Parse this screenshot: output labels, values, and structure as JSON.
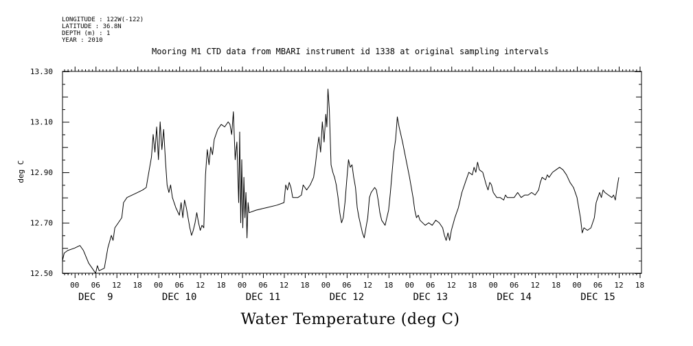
{
  "header": {
    "longitude": "LONGITUDE : 122W(-122)",
    "latitude": "LATITUDE : 36.8N",
    "depth": "DEPTH (m) : 1",
    "year": "YEAR : 2010"
  },
  "chart_data": {
    "type": "line",
    "title": "Mooring M1 CTD data from MBARI instrument id 1338 at original sampling intervals",
    "xlabel": "Water Temperature (deg C)",
    "ylabel": "deg C",
    "ylim": [
      12.5,
      13.3
    ],
    "y_ticks": [
      "12.50",
      "12.70",
      "12.90",
      "13.10",
      "13.30"
    ],
    "x_unit": "hours since DEC 9 00:00",
    "xlim": [
      -3.5,
      162.5
    ],
    "x_hour_ticks": [
      {
        "hour": 0,
        "label": "00"
      },
      {
        "hour": 6,
        "label": "06"
      },
      {
        "hour": 12,
        "label": "12"
      },
      {
        "hour": 18,
        "label": "18"
      },
      {
        "hour": 24,
        "label": "00"
      },
      {
        "hour": 30,
        "label": "06"
      },
      {
        "hour": 36,
        "label": "12"
      },
      {
        "hour": 42,
        "label": "18"
      },
      {
        "hour": 48,
        "label": "00"
      },
      {
        "hour": 54,
        "label": "06"
      },
      {
        "hour": 60,
        "label": "12"
      },
      {
        "hour": 66,
        "label": "18"
      },
      {
        "hour": 72,
        "label": "00"
      },
      {
        "hour": 78,
        "label": "06"
      },
      {
        "hour": 84,
        "label": "12"
      },
      {
        "hour": 90,
        "label": "18"
      },
      {
        "hour": 96,
        "label": "00"
      },
      {
        "hour": 102,
        "label": "06"
      },
      {
        "hour": 108,
        "label": "12"
      },
      {
        "hour": 114,
        "label": "18"
      },
      {
        "hour": 120,
        "label": "00"
      },
      {
        "hour": 126,
        "label": "06"
      },
      {
        "hour": 132,
        "label": "12"
      },
      {
        "hour": 138,
        "label": "18"
      },
      {
        "hour": 144,
        "label": "00"
      },
      {
        "hour": 150,
        "label": "06"
      },
      {
        "hour": 156,
        "label": "12"
      },
      {
        "hour": 162,
        "label": "18"
      }
    ],
    "day_labels": [
      {
        "hour": 6,
        "label": "DEC  9"
      },
      {
        "hour": 30,
        "label": "DEC 10"
      },
      {
        "hour": 54,
        "label": "DEC 11"
      },
      {
        "hour": 78,
        "label": "DEC 12"
      },
      {
        "hour": 102,
        "label": "DEC 13"
      },
      {
        "hour": 126,
        "label": "DEC 14"
      },
      {
        "hour": 150,
        "label": "DEC 15"
      }
    ],
    "grid": false,
    "series": [
      {
        "color": "#000000",
        "points": [
          [
            -3.5,
            12.55
          ],
          [
            -3.0,
            12.58
          ],
          [
            -2.0,
            12.59
          ],
          [
            0.0,
            12.6
          ],
          [
            1.5,
            12.61
          ],
          [
            2.5,
            12.59
          ],
          [
            4.0,
            12.54
          ],
          [
            5.5,
            12.51
          ],
          [
            6.0,
            12.5
          ],
          [
            6.5,
            12.53
          ],
          [
            7.0,
            12.51
          ],
          [
            8.5,
            12.52
          ],
          [
            9.5,
            12.6
          ],
          [
            10.5,
            12.65
          ],
          [
            11.0,
            12.63
          ],
          [
            11.5,
            12.68
          ],
          [
            12.5,
            12.7
          ],
          [
            13.5,
            12.72
          ],
          [
            14.0,
            12.78
          ],
          [
            15.0,
            12.8
          ],
          [
            16.5,
            12.81
          ],
          [
            18.0,
            12.82
          ],
          [
            19.5,
            12.83
          ],
          [
            20.5,
            12.84
          ],
          [
            21.0,
            12.88
          ],
          [
            22.0,
            12.96
          ],
          [
            22.5,
            13.05
          ],
          [
            23.0,
            12.98
          ],
          [
            23.5,
            13.08
          ],
          [
            24.0,
            12.95
          ],
          [
            24.5,
            13.1
          ],
          [
            25.0,
            12.99
          ],
          [
            25.5,
            13.07
          ],
          [
            26.0,
            12.95
          ],
          [
            26.5,
            12.85
          ],
          [
            27.0,
            12.82
          ],
          [
            27.5,
            12.85
          ],
          [
            28.0,
            12.8
          ],
          [
            29.0,
            12.76
          ],
          [
            30.0,
            12.73
          ],
          [
            30.5,
            12.78
          ],
          [
            31.0,
            12.72
          ],
          [
            31.5,
            12.79
          ],
          [
            32.0,
            12.76
          ],
          [
            32.5,
            12.72
          ],
          [
            33.0,
            12.68
          ],
          [
            33.5,
            12.65
          ],
          [
            34.0,
            12.67
          ],
          [
            34.5,
            12.7
          ],
          [
            35.0,
            12.74
          ],
          [
            35.5,
            12.7
          ],
          [
            36.0,
            12.67
          ],
          [
            36.5,
            12.69
          ],
          [
            37.0,
            12.68
          ],
          [
            37.5,
            12.89
          ],
          [
            38.0,
            12.99
          ],
          [
            38.5,
            12.93
          ],
          [
            39.0,
            13.0
          ],
          [
            39.5,
            12.97
          ],
          [
            40.0,
            13.03
          ],
          [
            41.0,
            13.07
          ],
          [
            42.0,
            13.09
          ],
          [
            43.0,
            13.08
          ],
          [
            44.0,
            13.1
          ],
          [
            44.5,
            13.09
          ],
          [
            45.0,
            13.05
          ],
          [
            45.5,
            13.14
          ],
          [
            46.0,
            12.95
          ],
          [
            46.5,
            13.02
          ],
          [
            47.0,
            12.78
          ],
          [
            47.3,
            13.06
          ],
          [
            47.6,
            12.7
          ],
          [
            47.9,
            12.95
          ],
          [
            48.2,
            12.68
          ],
          [
            48.5,
            12.88
          ],
          [
            48.8,
            12.72
          ],
          [
            49.1,
            12.82
          ],
          [
            49.4,
            12.64
          ],
          [
            49.7,
            12.78
          ],
          [
            50.0,
            12.74
          ],
          [
            52.0,
            12.75
          ],
          [
            55.0,
            12.76
          ],
          [
            58.0,
            12.77
          ],
          [
            60.0,
            12.78
          ],
          [
            60.5,
            12.85
          ],
          [
            61.0,
            12.83
          ],
          [
            61.5,
            12.86
          ],
          [
            62.0,
            12.84
          ],
          [
            62.5,
            12.8
          ],
          [
            64.0,
            12.8
          ],
          [
            65.0,
            12.81
          ],
          [
            65.5,
            12.85
          ],
          [
            66.5,
            12.83
          ],
          [
            67.5,
            12.85
          ],
          [
            68.5,
            12.88
          ],
          [
            69.0,
            12.93
          ],
          [
            69.5,
            12.99
          ],
          [
            70.0,
            13.04
          ],
          [
            70.5,
            12.98
          ],
          [
            71.0,
            13.1
          ],
          [
            71.5,
            13.02
          ],
          [
            72.0,
            13.13
          ],
          [
            72.3,
            13.08
          ],
          [
            72.6,
            13.23
          ],
          [
            73.0,
            13.15
          ],
          [
            73.5,
            12.93
          ],
          [
            74.0,
            12.9
          ],
          [
            74.5,
            12.88
          ],
          [
            75.0,
            12.85
          ],
          [
            75.5,
            12.8
          ],
          [
            76.0,
            12.74
          ],
          [
            76.5,
            12.7
          ],
          [
            77.0,
            12.72
          ],
          [
            77.5,
            12.78
          ],
          [
            78.0,
            12.87
          ],
          [
            78.5,
            12.95
          ],
          [
            79.0,
            12.92
          ],
          [
            79.5,
            12.93
          ],
          [
            80.0,
            12.88
          ],
          [
            80.5,
            12.84
          ],
          [
            81.0,
            12.76
          ],
          [
            81.5,
            12.72
          ],
          [
            82.0,
            12.69
          ],
          [
            82.5,
            12.66
          ],
          [
            83.0,
            12.64
          ],
          [
            83.5,
            12.68
          ],
          [
            84.0,
            12.72
          ],
          [
            84.5,
            12.8
          ],
          [
            85.0,
            12.82
          ],
          [
            86.0,
            12.84
          ],
          [
            86.5,
            12.83
          ],
          [
            87.0,
            12.79
          ],
          [
            87.5,
            12.74
          ],
          [
            88.0,
            12.71
          ],
          [
            89.0,
            12.69
          ],
          [
            90.0,
            12.75
          ],
          [
            90.5,
            12.82
          ],
          [
            91.0,
            12.9
          ],
          [
            91.5,
            12.98
          ],
          [
            92.0,
            13.03
          ],
          [
            92.5,
            13.12
          ],
          [
            93.0,
            13.08
          ],
          [
            93.5,
            13.05
          ],
          [
            94.0,
            13.02
          ],
          [
            95.0,
            12.95
          ],
          [
            96.0,
            12.88
          ],
          [
            97.0,
            12.8
          ],
          [
            97.5,
            12.75
          ],
          [
            98.0,
            12.72
          ],
          [
            98.5,
            12.73
          ],
          [
            99.0,
            12.71
          ],
          [
            100.5,
            12.69
          ],
          [
            101.5,
            12.7
          ],
          [
            102.5,
            12.69
          ],
          [
            103.5,
            12.71
          ],
          [
            104.5,
            12.7
          ],
          [
            105.5,
            12.68
          ],
          [
            106.0,
            12.65
          ],
          [
            106.5,
            12.63
          ],
          [
            107.0,
            12.66
          ],
          [
            107.5,
            12.63
          ],
          [
            108.0,
            12.67
          ],
          [
            109.0,
            12.72
          ],
          [
            110.0,
            12.76
          ],
          [
            111.0,
            12.82
          ],
          [
            112.0,
            12.86
          ],
          [
            113.0,
            12.9
          ],
          [
            114.0,
            12.89
          ],
          [
            114.5,
            12.92
          ],
          [
            115.0,
            12.9
          ],
          [
            115.5,
            12.94
          ],
          [
            116.0,
            12.91
          ],
          [
            117.0,
            12.9
          ],
          [
            118.0,
            12.85
          ],
          [
            118.5,
            12.83
          ],
          [
            119.0,
            12.86
          ],
          [
            119.5,
            12.85
          ],
          [
            120.0,
            12.82
          ],
          [
            121.0,
            12.8
          ],
          [
            122.0,
            12.8
          ],
          [
            123.0,
            12.79
          ],
          [
            123.5,
            12.81
          ],
          [
            124.0,
            12.8
          ],
          [
            125.0,
            12.8
          ],
          [
            126.0,
            12.8
          ],
          [
            127.0,
            12.82
          ],
          [
            128.0,
            12.8
          ],
          [
            129.0,
            12.81
          ],
          [
            130.0,
            12.81
          ],
          [
            131.0,
            12.82
          ],
          [
            132.0,
            12.81
          ],
          [
            133.0,
            12.83
          ],
          [
            133.5,
            12.86
          ],
          [
            134.0,
            12.88
          ],
          [
            135.0,
            12.87
          ],
          [
            135.5,
            12.89
          ],
          [
            136.0,
            12.88
          ],
          [
            137.0,
            12.9
          ],
          [
            138.0,
            12.91
          ],
          [
            139.0,
            12.92
          ],
          [
            140.0,
            12.91
          ],
          [
            141.0,
            12.89
          ],
          [
            142.0,
            12.86
          ],
          [
            143.0,
            12.84
          ],
          [
            144.0,
            12.8
          ],
          [
            144.5,
            12.76
          ],
          [
            145.0,
            12.72
          ],
          [
            145.5,
            12.66
          ],
          [
            146.0,
            12.68
          ],
          [
            147.0,
            12.67
          ],
          [
            148.0,
            12.68
          ],
          [
            148.5,
            12.7
          ],
          [
            149.0,
            12.72
          ],
          [
            149.5,
            12.78
          ],
          [
            150.0,
            12.8
          ],
          [
            150.5,
            12.82
          ],
          [
            151.0,
            12.8
          ],
          [
            151.5,
            12.83
          ],
          [
            152.0,
            12.82
          ],
          [
            153.0,
            12.81
          ],
          [
            154.0,
            12.8
          ],
          [
            154.5,
            12.81
          ],
          [
            155.0,
            12.79
          ],
          [
            155.5,
            12.84
          ],
          [
            156.0,
            12.88
          ]
        ]
      }
    ]
  }
}
